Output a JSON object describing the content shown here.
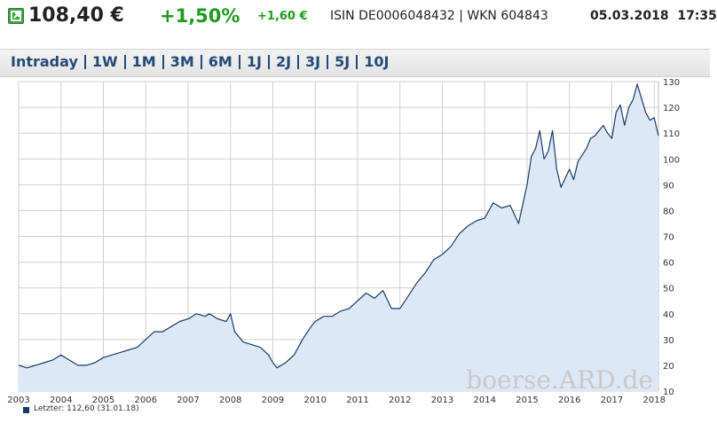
{
  "header": {
    "price": "108,40 €",
    "change_pct": "+1,50%",
    "change_abs": "+1,60 €",
    "isin_wkn": "ISIN DE0006048432 | WKN 604843",
    "date": "05.03.2018",
    "time": "17:35",
    "colors": {
      "up": "#1f9a1f",
      "text": "#222222"
    }
  },
  "tabs": [
    "Intraday",
    "1W",
    "1M",
    "3M",
    "6M",
    "1J",
    "2J",
    "3J",
    "5J",
    "10J"
  ],
  "watermark": "boerse.ARD.de",
  "legend": "Letzter: 112,60 (31.01.18)",
  "chart_data": {
    "type": "area",
    "title": "",
    "xlabel": "",
    "ylabel": "",
    "xlim": [
      2003,
      2018.1
    ],
    "ylim": [
      10,
      130
    ],
    "x_ticks": [
      2003,
      2004,
      2005,
      2006,
      2007,
      2008,
      2009,
      2010,
      2011,
      2012,
      2013,
      2014,
      2015,
      2016,
      2017,
      2018
    ],
    "y_ticks": [
      10,
      20,
      30,
      40,
      50,
      60,
      70,
      80,
      90,
      100,
      110,
      120,
      130
    ],
    "grid": true,
    "y_axis_side": "right",
    "colors": {
      "line": "#1a3a66",
      "fill": "#dde8f6",
      "grid": "#d0d0d0"
    },
    "series": [
      {
        "x": [
          2003.0,
          2003.2,
          2003.4,
          2003.6,
          2003.8,
          2004.0,
          2004.2,
          2004.4,
          2004.6,
          2004.8,
          2005.0,
          2005.2,
          2005.4,
          2005.6,
          2005.8,
          2006.0,
          2006.2,
          2006.4,
          2006.6,
          2006.8,
          2007.0,
          2007.2,
          2007.4,
          2007.5,
          2007.7,
          2007.9,
          2008.0,
          2008.1,
          2008.3,
          2008.5,
          2008.7,
          2008.9,
          2009.0,
          2009.1,
          2009.3,
          2009.5,
          2009.7,
          2009.9,
          2010.0,
          2010.2,
          2010.4,
          2010.6,
          2010.8,
          2011.0,
          2011.2,
          2011.4,
          2011.6,
          2011.8,
          2012.0,
          2012.2,
          2012.4,
          2012.6,
          2012.8,
          2013.0,
          2013.2,
          2013.4,
          2013.6,
          2013.8,
          2014.0,
          2014.2,
          2014.4,
          2014.6,
          2014.8,
          2015.0,
          2015.1,
          2015.2,
          2015.3,
          2015.4,
          2015.5,
          2015.6,
          2015.7,
          2015.8,
          2016.0,
          2016.1,
          2016.2,
          2016.4,
          2016.5,
          2016.6,
          2016.8,
          2016.9,
          2017.0,
          2017.1,
          2017.2,
          2017.3,
          2017.4,
          2017.5,
          2017.6,
          2017.8,
          2017.9,
          2018.0,
          2018.1
        ],
        "y": [
          20,
          19,
          20,
          21,
          22,
          24,
          22,
          20,
          20,
          21,
          23,
          24,
          25,
          26,
          27,
          30,
          33,
          33,
          35,
          37,
          38,
          40,
          39,
          40,
          38,
          37,
          40,
          33,
          29,
          28,
          27,
          24,
          21,
          19,
          21,
          24,
          30,
          35,
          37,
          39,
          39,
          41,
          42,
          45,
          48,
          46,
          49,
          42,
          42,
          47,
          52,
          56,
          61,
          63,
          66,
          71,
          74,
          76,
          77,
          83,
          81,
          82,
          75,
          90,
          101,
          104,
          111,
          100,
          103,
          111,
          96,
          89,
          96,
          92,
          99,
          104,
          108,
          109,
          113,
          110,
          108,
          118,
          121,
          113,
          120,
          123,
          129,
          118,
          115,
          116,
          109
        ]
      }
    ]
  }
}
